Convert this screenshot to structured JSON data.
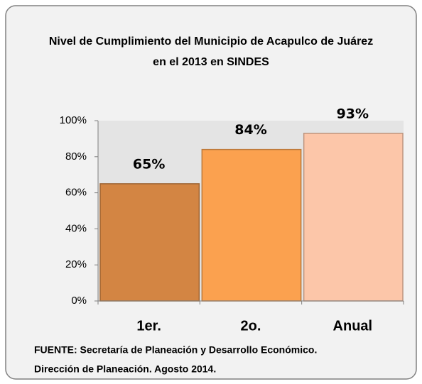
{
  "chart_data": {
    "type": "bar",
    "title": [
      "Nivel de Cumplimiento del Municipio de Acapulco de Juárez",
      "en el 2013 en SINDES"
    ],
    "categories": [
      "1er.",
      "2o.",
      "Anual"
    ],
    "values": [
      65,
      84,
      93
    ],
    "value_labels": [
      "65%",
      "84%",
      "93%"
    ],
    "colors": [
      "#d38543",
      "#fba14f",
      "#fcc6a9"
    ],
    "ylim": [
      0,
      100
    ],
    "yticks": [
      {
        "value": 0,
        "label": "0%"
      },
      {
        "value": 20,
        "label": "20%"
      },
      {
        "value": 40,
        "label": "40%"
      },
      {
        "value": 60,
        "label": "60%"
      },
      {
        "value": 80,
        "label": "80%"
      },
      {
        "value": 100,
        "label": "100%"
      }
    ],
    "grid": false,
    "source": [
      "FUENTE: Secretaría de Planeación y Desarrollo Económico.",
      "Dirección de Planeación. Agosto 2014."
    ]
  }
}
